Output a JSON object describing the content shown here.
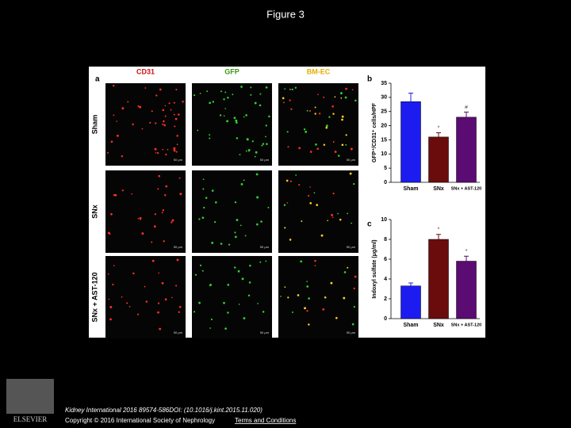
{
  "page": {
    "title": "Figure 3",
    "figure": {
      "panel_a": "a",
      "columns": [
        {
          "label": "CD31",
          "color": "#d01010"
        },
        {
          "label": "GFP",
          "color": "#3a9a10"
        },
        {
          "label": "BM-EC",
          "color": "#e0b000"
        }
      ],
      "rows": [
        "Sham",
        "SNx",
        "SNx + AST-120"
      ],
      "scale_bar": "50 μm"
    },
    "footer": {
      "citation": "Kidney International 2016 89574-586DOI: (10.1016/j.kint.2015.11.020)",
      "copyright": "Copyright © 2016 International Society of Nephrology",
      "link": "Terms and Conditions",
      "logo": "ELSEVIER"
    }
  },
  "chart_data": [
    {
      "type": "bar",
      "panel": "b",
      "ylabel": "GFP⁺/CD31⁺ cells/HPF",
      "categories": [
        "Sham",
        "SNx",
        "SNx + AST-120"
      ],
      "values": [
        28.5,
        16,
        23
      ],
      "errors": [
        3,
        1.5,
        1.8
      ],
      "colors": [
        "#1c1cf0",
        "#6a0c0c",
        "#5a0c72"
      ],
      "annotations": [
        null,
        "*",
        "#"
      ],
      "ylim": [
        0,
        35
      ],
      "yticks": [
        0,
        5,
        10,
        15,
        20,
        25,
        30,
        35
      ]
    },
    {
      "type": "bar",
      "panel": "c",
      "ylabel": "Indoxyl sulfate (μg/ml)",
      "categories": [
        "Sham",
        "SNx",
        "SNx + AST-120"
      ],
      "values": [
        3.3,
        8,
        5.8
      ],
      "errors": [
        0.3,
        0.5,
        0.5
      ],
      "colors": [
        "#1c1cf0",
        "#6a0c0c",
        "#5a0c72"
      ],
      "annotations": [
        null,
        "*",
        "*"
      ],
      "ylim": [
        0,
        10
      ],
      "yticks": [
        0,
        2,
        4,
        6,
        8,
        10
      ]
    }
  ]
}
